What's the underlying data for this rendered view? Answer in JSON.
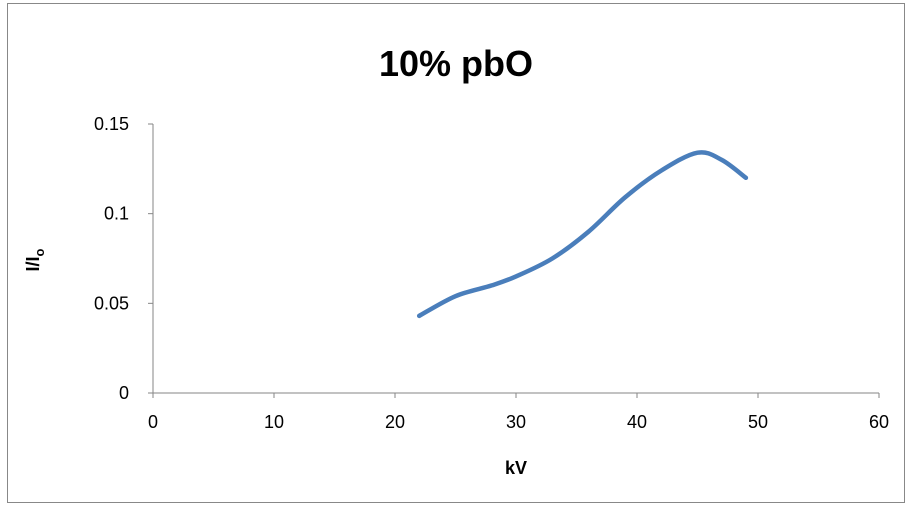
{
  "chart_data": {
    "type": "line",
    "title": "10% pbO",
    "xlabel": "kV",
    "ylabel_main": "I/I",
    "ylabel_sub": "o",
    "xlim": [
      0,
      60
    ],
    "ylim": [
      0,
      0.15
    ],
    "xticks": [
      0,
      10,
      20,
      30,
      40,
      50,
      60
    ],
    "yticks": [
      0,
      0.05,
      0.1,
      0.15
    ],
    "xtick_labels": [
      "0",
      "10",
      "20",
      "30",
      "40",
      "50",
      "60"
    ],
    "ytick_labels": [
      "0",
      "0.05",
      "0.1",
      "0.15"
    ],
    "grid": false,
    "legend": "none",
    "series": [
      {
        "color": "#4a7ebb",
        "x": [
          22,
          25,
          28,
          30,
          33,
          36,
          39,
          42,
          45,
          47,
          49
        ],
        "y": [
          0.043,
          0.054,
          0.06,
          0.065,
          0.075,
          0.09,
          0.109,
          0.124,
          0.134,
          0.13,
          0.12
        ]
      }
    ]
  }
}
